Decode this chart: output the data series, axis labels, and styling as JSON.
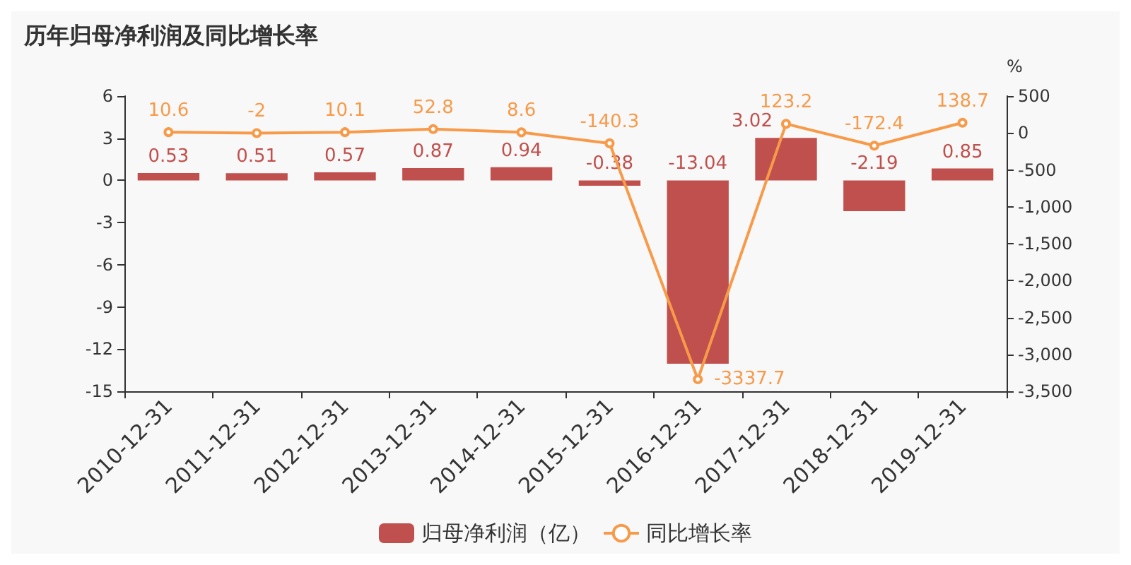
{
  "chart_data": {
    "type": "bar",
    "title": "历年归母净利润及同比增长率",
    "y2label": "%",
    "categories": [
      "2010-12-31",
      "2011-12-31",
      "2012-12-31",
      "2013-12-31",
      "2014-12-31",
      "2015-12-31",
      "2016-12-31",
      "2017-12-31",
      "2018-12-31",
      "2019-12-31"
    ],
    "series": [
      {
        "name": "归母净利润（亿）",
        "color": "#c0504d",
        "values": [
          0.53,
          0.51,
          0.57,
          0.87,
          0.94,
          -0.38,
          -13.04,
          3.02,
          -2.19,
          0.85
        ]
      },
      {
        "name": "同比增长率",
        "type": "line",
        "axis": "y2",
        "color": "#f79a4a",
        "values": [
          10.6,
          -2,
          10.1,
          52.8,
          8.6,
          -140.3,
          -3337.7,
          123.2,
          -172.4,
          138.7
        ]
      }
    ],
    "ylim": [
      -15,
      6
    ],
    "yticks": [
      -15,
      -12,
      -9,
      -6,
      -3,
      0,
      3,
      6
    ],
    "y2lim": [
      -3500,
      500
    ],
    "y2ticks": [
      {
        "value": -3500,
        "label": "-3,500"
      },
      {
        "value": -3000,
        "label": "-3,000"
      },
      {
        "value": -2500,
        "label": "-2,500"
      },
      {
        "value": -2000,
        "label": "-2,000"
      },
      {
        "value": -1500,
        "label": "-1,500"
      },
      {
        "value": -1000,
        "label": "-1,000"
      },
      -500,
      0,
      500
    ],
    "data_labels": true,
    "legend": "bottom",
    "marker": "circle"
  }
}
